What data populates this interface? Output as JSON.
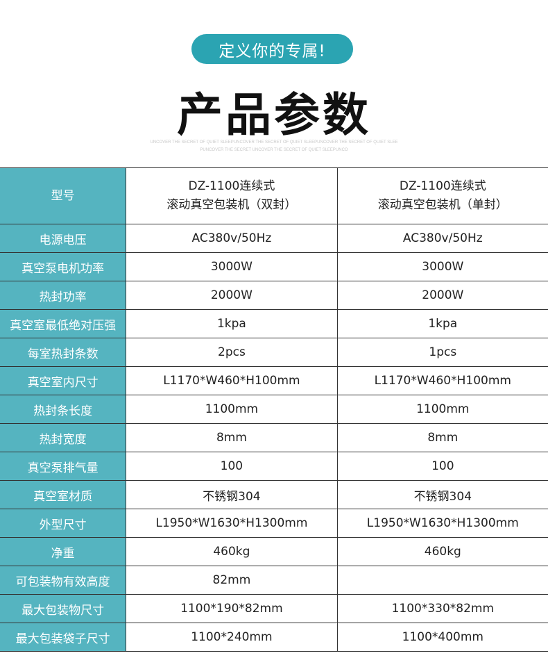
{
  "header": {
    "tag": "定义你的专属!",
    "title": "产品参数",
    "sub_line1": "UNCOVER THE SECRET OF QUIET SLEEPUNCOVER THE SECRET OF QUIET SLEEPUNCOVER THE SECRET OF QUIET SLEE",
    "sub_line2": "PUNCOVER THE SECRET UNCOVER THE SECRET OF QUIET SLEEPUNCO"
  },
  "colors": {
    "accent": "#2ba4b2",
    "label_bg": "#55b4c0"
  },
  "table": {
    "model": {
      "label": "型号",
      "a1": "DZ-1100连续式",
      "a2": "滚动真空包装机（双封）",
      "b1": "DZ-1100连续式",
      "b2": "滚动真空包装机（单封）"
    },
    "rows": [
      {
        "label": "电源电压",
        "a": "AC380v/50Hz",
        "b": "AC380v/50Hz"
      },
      {
        "label": "真空泵电机功率",
        "a": "3000W",
        "b": "3000W"
      },
      {
        "label": "热封功率",
        "a": "2000W",
        "b": "2000W"
      },
      {
        "label": "真空室最低绝对压强",
        "a": "1kpa",
        "b": "1kpa"
      },
      {
        "label": "每室热封条数",
        "a": "2pcs",
        "b": "1pcs"
      },
      {
        "label": "真空室内尺寸",
        "a": "L1170*W460*H100mm",
        "b": "L1170*W460*H100mm"
      },
      {
        "label": "热封条长度",
        "a": "1100mm",
        "b": "1100mm"
      },
      {
        "label": "热封宽度",
        "a": "8mm",
        "b": "8mm"
      },
      {
        "label": "真空泵排气量",
        "a": "100",
        "b": "100"
      },
      {
        "label": "真空室材质",
        "a": "不锈钢304",
        "b": "不锈钢304"
      },
      {
        "label": "外型尺寸",
        "a": "L1950*W1630*H1300mm",
        "b": "L1950*W1630*H1300mm"
      },
      {
        "label": "净重",
        "a": "460kg",
        "b": "460kg"
      },
      {
        "label": "可包装物有效高度",
        "a": "82mm",
        "b": ""
      },
      {
        "label": "最大包装物尺寸",
        "a": "1100*190*82mm",
        "b": "1100*330*82mm"
      },
      {
        "label": "最大包装袋子尺寸",
        "a": "1100*240mm",
        "b": "1100*400mm"
      }
    ]
  }
}
